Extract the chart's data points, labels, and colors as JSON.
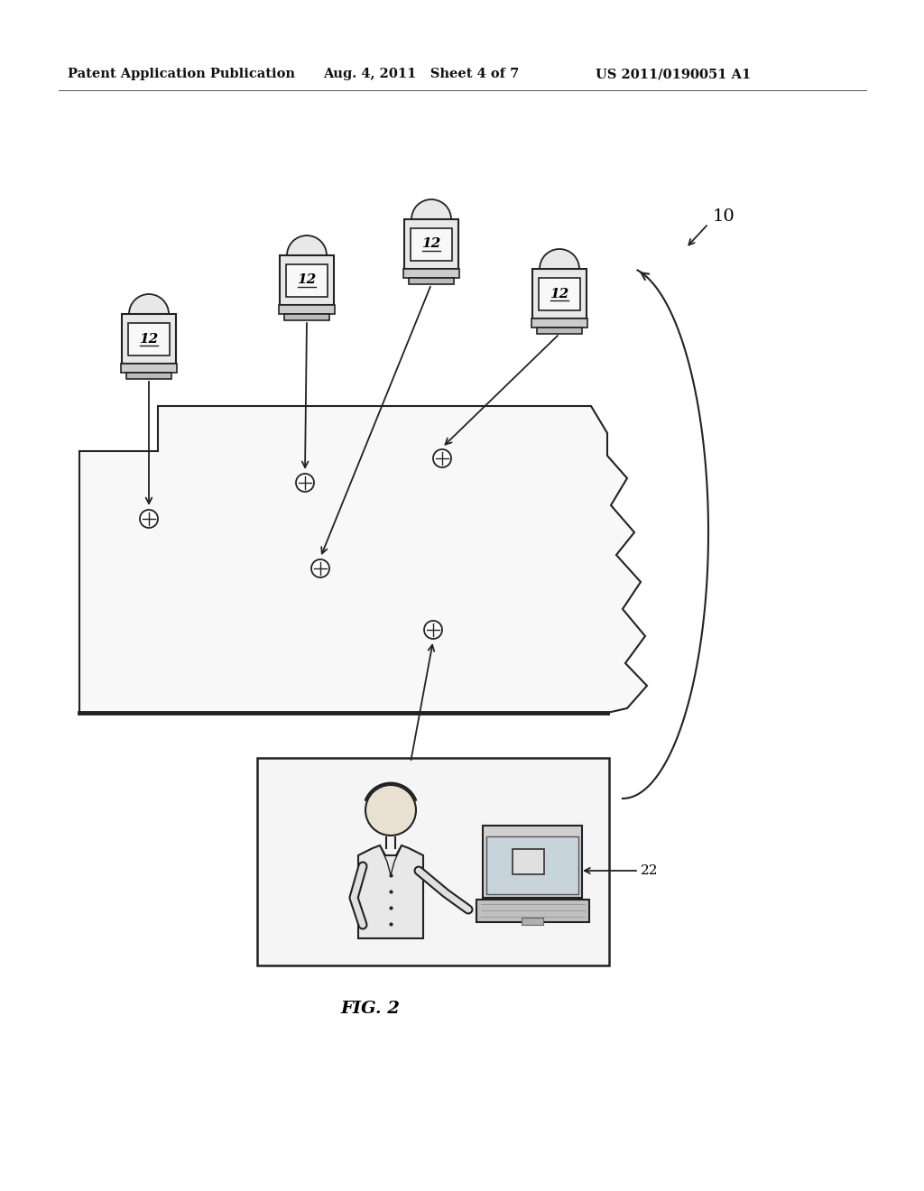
{
  "title_left": "Patent Application Publication",
  "title_mid": "Aug. 4, 2011   Sheet 4 of 7",
  "title_right": "US 2011/0190051 A1",
  "fig_label": "FIG. 2",
  "label_10": "10",
  "label_12": "12",
  "label_22": "22",
  "background_color": "#ffffff",
  "map_fill": "#f5f5f5",
  "map_edge": "#111111",
  "machine_body_fill": "#e8e8e8",
  "machine_screen_fill": "#f8f8f8",
  "line_color": "#222222"
}
